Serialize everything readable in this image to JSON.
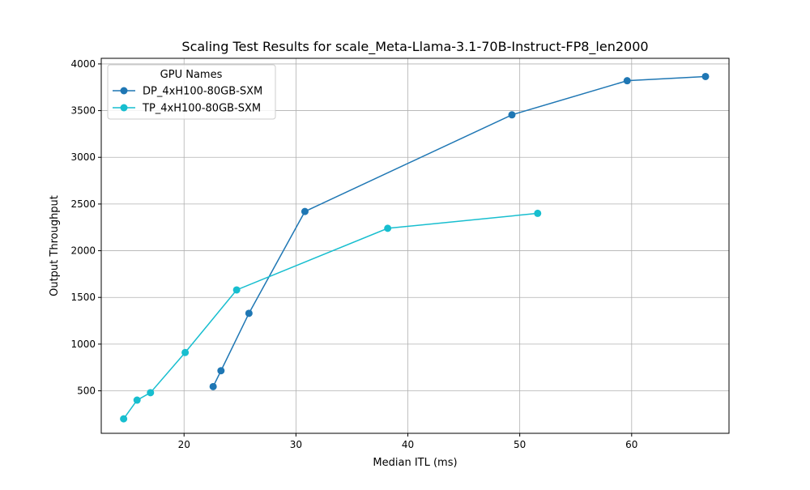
{
  "chart_data": {
    "type": "line",
    "title": "Scaling Test Results for scale_Meta-Llama-3.1-70B-Instruct-FP8_len2000",
    "xlabel": "Median ITL (ms)",
    "ylabel": "Output Throughput",
    "xlim": [
      12.6,
      68.7
    ],
    "ylim": [
      45,
      4060
    ],
    "xticks": [
      20,
      30,
      40,
      50,
      60
    ],
    "yticks": [
      500,
      1000,
      1500,
      2000,
      2500,
      3000,
      3500,
      4000
    ],
    "grid": true,
    "legend": {
      "title": "GPU Names",
      "placement": "top-left"
    },
    "series": [
      {
        "name": "DP_4xH100-80GB-SXM",
        "color": "#1f77b4",
        "marker": "circle",
        "x": [
          22.6,
          23.3,
          25.8,
          30.8,
          49.3,
          59.6,
          66.6
        ],
        "y": [
          545,
          715,
          1330,
          2420,
          3455,
          3820,
          3865
        ]
      },
      {
        "name": "TP_4xH100-80GB-SXM",
        "color": "#17becf",
        "marker": "circle",
        "x": [
          14.6,
          15.8,
          17.0,
          20.1,
          24.7,
          38.2,
          51.6
        ],
        "y": [
          200,
          400,
          480,
          910,
          1580,
          2240,
          2400
        ]
      }
    ]
  }
}
